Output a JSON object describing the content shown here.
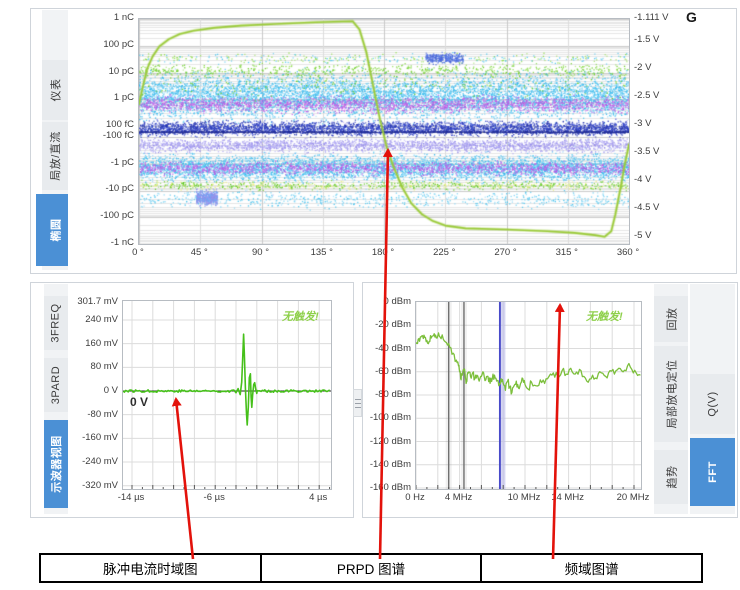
{
  "screen": {
    "corner_label": "G",
    "accent_blue": "#4b90d5",
    "arrow_red": "#e3120b",
    "trace_green": "#46c01a",
    "curve_green": "#9ccb3b"
  },
  "panels": {
    "prpd": {
      "tabs_left": [
        {
          "id": "yibiao",
          "label": "仪表",
          "selected": false
        },
        {
          "id": "jufang-zhiliu",
          "label": "局放/直流",
          "selected": false
        },
        {
          "id": "tuoyuan",
          "label": "椭圆",
          "selected": true
        }
      ]
    },
    "scope": {
      "tabs_left": [
        {
          "id": "3freq",
          "label": "3FREQ",
          "selected": false
        },
        {
          "id": "3pard",
          "label": "3PARD",
          "selected": false
        },
        {
          "id": "scope-view",
          "label": "示波器视图",
          "selected": true
        }
      ],
      "no_trigger": "无触发!",
      "zero_marker": "0 V"
    },
    "fft": {
      "tabs_inner": [
        {
          "id": "huifang",
          "label": "回放",
          "selected": false
        },
        {
          "id": "pd-locate",
          "label": "局部放电定位",
          "selected": false
        },
        {
          "id": "qushi",
          "label": "趋势",
          "selected": false
        }
      ],
      "tabs_outer": [
        {
          "id": "qv",
          "label": "Q(V)",
          "selected": false
        },
        {
          "id": "fft",
          "label": "FFT",
          "selected": true
        }
      ],
      "no_trigger": "无触发!"
    }
  },
  "annotations": {
    "cells": [
      {
        "label": "脉冲电流时域图"
      },
      {
        "label": "PRPD 图谱"
      },
      {
        "label": "频域图谱"
      }
    ],
    "arrows": [
      {
        "from": [
          193,
          559
        ],
        "to": [
          176,
          399
        ]
      },
      {
        "from": [
          380,
          559
        ],
        "to": [
          388,
          150
        ]
      },
      {
        "from": [
          553,
          559
        ],
        "to": [
          560,
          305
        ]
      }
    ]
  },
  "chart_data": [
    {
      "type": "scatter",
      "title": "PRPD 图谱",
      "x_axis": {
        "range_deg": [
          0,
          360
        ],
        "tick_labels": [
          "0 °",
          "45 °",
          "90 °",
          "135 °",
          "180 °",
          "225 °",
          "270 °",
          "315 °",
          "360 °"
        ]
      },
      "y_axis_left": {
        "scale": "symlog-charge",
        "tick_labels": [
          "1 nC",
          "100 pC",
          "10 pC",
          "1 pC",
          "100 fC",
          "-100 fC",
          "-1 pC",
          "-10 pC",
          "-100 pC",
          "-1 nC"
        ]
      },
      "y_axis_right": {
        "scale": "linear-volts",
        "range_v": [
          -1.111,
          -5
        ],
        "tick_labels": [
          "-1.111 V",
          "-1.5 V",
          "-2 V",
          "-2.5 V",
          "-3 V",
          "-3.5 V",
          "-4 V",
          "-4.5 V",
          "-5 V"
        ]
      },
      "voltage_curve_deg_v": [
        [
          0,
          -2.63
        ],
        [
          3,
          -2.3
        ],
        [
          6,
          -2.0
        ],
        [
          10,
          -1.78
        ],
        [
          15,
          -1.6
        ],
        [
          22,
          -1.47
        ],
        [
          30,
          -1.38
        ],
        [
          40,
          -1.32
        ],
        [
          55,
          -1.27
        ],
        [
          75,
          -1.23
        ],
        [
          100,
          -1.2
        ],
        [
          130,
          -1.17
        ],
        [
          150,
          -1.155
        ],
        [
          157,
          -1.15
        ],
        [
          162,
          -1.3
        ],
        [
          167,
          -1.7
        ],
        [
          172,
          -2.3
        ],
        [
          177,
          -2.9
        ],
        [
          182,
          -3.4
        ],
        [
          187,
          -3.75
        ],
        [
          193,
          -4.1
        ],
        [
          200,
          -4.4
        ],
        [
          208,
          -4.6
        ],
        [
          216,
          -4.72
        ],
        [
          225,
          -4.8
        ],
        [
          240,
          -4.85
        ],
        [
          270,
          -4.87
        ],
        [
          300,
          -4.9
        ],
        [
          320,
          -4.93
        ],
        [
          335,
          -4.97
        ],
        [
          342,
          -5.0
        ],
        [
          347,
          -4.9
        ],
        [
          350,
          -4.6
        ],
        [
          354,
          -4.1
        ],
        [
          357,
          -3.7
        ],
        [
          360,
          -3.35
        ]
      ],
      "density_bands": [
        {
          "name": "pos-cyan-dense",
          "y0": 0.204,
          "y1": 0.48,
          "n": 7000,
          "colors": [
            "#3ec1f2",
            "#55c6f3",
            "#2fb4ea",
            "#7fd4f6"
          ]
        },
        {
          "name": "pos-magenta",
          "y0": 0.329,
          "y1": 0.427,
          "n": 2000,
          "colors": [
            "#c45ce8",
            "#b152dd",
            "#d070f0"
          ]
        },
        {
          "name": "pos-green-edge",
          "y0": 0.187,
          "y1": 0.267,
          "n": 700,
          "colors": [
            "#6fcf2a",
            "#8fdc4a"
          ]
        },
        {
          "name": "pos-green-streaks",
          "y0": 0.213,
          "y1": 0.37,
          "n": 260,
          "colors": [
            "#6fcf2a"
          ]
        },
        {
          "name": "center-navy",
          "y0": 0.44,
          "y1": 0.529,
          "n": 4000,
          "colors": [
            "#2e3ec2",
            "#3c4fd6",
            "#2534a8"
          ]
        },
        {
          "name": "center-line",
          "y0": 0.494,
          "y1": 0.506,
          "n": 1200,
          "colors": [
            "#222e9a"
          ]
        },
        {
          "name": "neg-lavender",
          "y0": 0.52,
          "y1": 0.6,
          "n": 2600,
          "colors": [
            "#a59df2",
            "#b6aef6",
            "#968ce8"
          ]
        },
        {
          "name": "neg-cyan-dense",
          "y0": 0.582,
          "y1": 0.738,
          "n": 5200,
          "colors": [
            "#3ec1f2",
            "#55c6f3",
            "#2fb4ea",
            "#7fd4f6"
          ]
        },
        {
          "name": "neg-magenta",
          "y0": 0.622,
          "y1": 0.702,
          "n": 1600,
          "colors": [
            "#b852e2",
            "#c96ceb"
          ]
        },
        {
          "name": "neg-green-line",
          "y0": 0.711,
          "y1": 0.764,
          "n": 900,
          "colors": [
            "#5ec81e",
            "#7fd84a",
            "#eaf07a"
          ]
        },
        {
          "name": "neg-sparse",
          "y0": 0.747,
          "y1": 0.853,
          "n": 700,
          "colors": [
            "#49c4ee",
            "#7fd4f6"
          ]
        },
        {
          "name": "pos-sparse-top",
          "y0": 0.142,
          "y1": 0.204,
          "n": 350,
          "colors": [
            "#49c4ee",
            "#8fdc4a"
          ]
        },
        {
          "name": "cluster-low-left",
          "y0": 0.747,
          "y1": 0.836,
          "x0": 0.116,
          "x1": 0.159,
          "n": 500,
          "colors": [
            "#9a9af0",
            "#6aa8f5",
            "#8f8fe8"
          ]
        },
        {
          "name": "cluster-high-mid",
          "y0": 0.142,
          "y1": 0.204,
          "x0": 0.584,
          "x1": 0.661,
          "n": 320,
          "colors": [
            "#5577e8",
            "#4a66d8"
          ]
        },
        {
          "name": "outliers",
          "y0": 0.08,
          "y1": 0.92,
          "n": 250,
          "colors": [
            "#bfe6fa",
            "#c9b9f0"
          ]
        }
      ]
    },
    {
      "type": "line",
      "title": "脉冲电流时域图",
      "x_axis": {
        "unit": "µs",
        "tick_labels": [
          [
            "-14 µs",
            -14
          ],
          [
            "-6 µs",
            -6
          ],
          [
            "4 µs",
            4
          ]
        ],
        "grid_step_us": 2
      },
      "y_axis": {
        "unit": "mV",
        "tick_labels": [
          [
            "301.7 mV",
            301.7
          ],
          [
            "240 mV",
            240
          ],
          [
            "160 mV",
            160
          ],
          [
            "80 mV",
            80
          ],
          [
            "0 V",
            0
          ],
          [
            "-80 mV",
            -80
          ],
          [
            "-160 mV",
            -160
          ],
          [
            "-240 mV",
            -240
          ],
          [
            "-320 mV",
            -320
          ]
        ]
      },
      "segments": [
        {
          "type": "noise",
          "t0": -14.85,
          "t1": -4.3,
          "amp_mv": 4
        },
        {
          "type": "points",
          "pts": [
            [
              -4.2,
              3
            ],
            [
              -4.0,
              -6
            ],
            [
              -3.8,
              8
            ],
            [
              -3.6,
              -12
            ],
            [
              -3.45,
              30
            ],
            [
              -3.35,
              120
            ],
            [
              -3.27,
              192
            ],
            [
              -3.2,
              130
            ],
            [
              -3.1,
              10
            ],
            [
              -3.0,
              -70
            ],
            [
              -2.92,
              -115
            ],
            [
              -2.82,
              -55
            ],
            [
              -2.72,
              45
            ],
            [
              -2.62,
              58
            ],
            [
              -2.55,
              -20
            ],
            [
              -2.48,
              -55
            ],
            [
              -2.4,
              -15
            ],
            [
              -2.3,
              22
            ],
            [
              -2.2,
              28
            ],
            [
              -2.1,
              5
            ],
            [
              -2.0,
              -8
            ]
          ]
        },
        {
          "type": "noise",
          "t0": -1.95,
          "t1": 5.1,
          "amp_mv": 4
        }
      ]
    },
    {
      "type": "line",
      "title": "频域图谱",
      "x_axis": {
        "unit": "MHz",
        "tick_labels": [
          [
            "0 Hz",
            0
          ],
          [
            "4 MHz",
            4
          ],
          [
            "10 MHz",
            10
          ],
          [
            "14 MHz",
            14
          ],
          [
            "20 MHz",
            20
          ]
        ],
        "grid_step_mhz": 2
      },
      "y_axis": {
        "unit": "dBm",
        "tick_labels": [
          [
            "0 dBm",
            0
          ],
          [
            "-20 dBm",
            -20
          ],
          [
            "-40 dBm",
            -40
          ],
          [
            "-60 dBm",
            -60
          ],
          [
            "-80 dBm",
            -80
          ],
          [
            "-100 dBm",
            -100
          ],
          [
            "-120 dBm",
            -120
          ],
          [
            "-140 dBm",
            -140
          ],
          [
            "-160 dBm",
            -160
          ]
        ]
      },
      "markers": {
        "gray_lines_mhz": [
          3.0,
          4.4
        ],
        "selection_band_mhz": [
          7.6,
          8.2
        ],
        "selection_line_mhz": 7.7
      },
      "noise_db": 3.2,
      "points_mhz_dbm": [
        [
          0,
          -36
        ],
        [
          0.2,
          -32
        ],
        [
          0.4,
          -30
        ],
        [
          0.6,
          -29
        ],
        [
          0.8,
          -30.5
        ],
        [
          1.0,
          -33
        ],
        [
          1.2,
          -34
        ],
        [
          1.4,
          -31
        ],
        [
          1.6,
          -29
        ],
        [
          1.8,
          -28.5
        ],
        [
          2.0,
          -29
        ],
        [
          2.2,
          -30
        ],
        [
          2.5,
          -32
        ],
        [
          2.8,
          -35
        ],
        [
          3.1,
          -39
        ],
        [
          3.4,
          -44
        ],
        [
          3.7,
          -50
        ],
        [
          3.9,
          -55
        ],
        [
          4.0,
          -60
        ],
        [
          4.1,
          -66
        ],
        [
          4.2,
          -62
        ],
        [
          4.35,
          -58
        ],
        [
          4.5,
          -62
        ],
        [
          4.6,
          -70
        ],
        [
          4.7,
          -63
        ],
        [
          4.85,
          -60
        ],
        [
          5.0,
          -64
        ],
        [
          5.2,
          -61
        ],
        [
          5.4,
          -66
        ],
        [
          5.6,
          -63
        ],
        [
          5.8,
          -68
        ],
        [
          6.0,
          -64
        ],
        [
          6.2,
          -61
        ],
        [
          6.4,
          -67
        ],
        [
          6.6,
          -64
        ],
        [
          6.8,
          -70
        ],
        [
          7.0,
          -66
        ],
        [
          7.2,
          -63
        ],
        [
          7.4,
          -68
        ],
        [
          7.6,
          -72
        ],
        [
          7.8,
          -66
        ],
        [
          8.0,
          -70
        ],
        [
          8.2,
          -76
        ],
        [
          8.4,
          -68
        ],
        [
          8.6,
          -73
        ],
        [
          8.8,
          -78
        ],
        [
          9.0,
          -72
        ],
        [
          9.2,
          -68
        ],
        [
          9.4,
          -74
        ],
        [
          9.6,
          -70
        ],
        [
          9.8,
          -66
        ],
        [
          10.0,
          -71
        ],
        [
          10.3,
          -75
        ],
        [
          10.6,
          -69
        ],
        [
          11.0,
          -72
        ],
        [
          11.4,
          -67
        ],
        [
          11.8,
          -70
        ],
        [
          12.2,
          -64
        ],
        [
          12.6,
          -61
        ],
        [
          13.0,
          -64
        ],
        [
          13.4,
          -59
        ],
        [
          13.8,
          -62
        ],
        [
          14.2,
          -57
        ],
        [
          14.6,
          -62
        ],
        [
          15.0,
          -58
        ],
        [
          15.4,
          -64
        ],
        [
          15.8,
          -69
        ],
        [
          16.2,
          -63
        ],
        [
          16.6,
          -66
        ],
        [
          17.0,
          -61
        ],
        [
          17.4,
          -64
        ],
        [
          17.8,
          -59
        ],
        [
          18.2,
          -62
        ],
        [
          18.6,
          -57
        ],
        [
          19.0,
          -60
        ],
        [
          19.4,
          -55
        ],
        [
          19.8,
          -58
        ],
        [
          20.2,
          -61
        ],
        [
          20.6,
          -63
        ]
      ]
    }
  ]
}
